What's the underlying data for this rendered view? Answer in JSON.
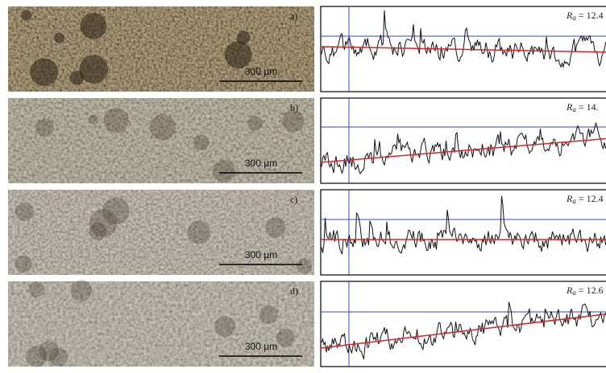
{
  "panels": [
    {
      "label": "a)",
      "scale": "300 µm",
      "ra_symbol": "R",
      "ra_sub": "a",
      "ra_value": "= 12.4"
    },
    {
      "label": "b)",
      "scale": "300 µm",
      "ra_symbol": "R",
      "ra_sub": "a",
      "ra_value": "= 14."
    },
    {
      "label": "c)",
      "scale": "300 µm",
      "ra_symbol": "R",
      "ra_sub": "a",
      "ra_value": "= 12.4"
    },
    {
      "label": "d)",
      "scale": "300 µm",
      "ra_symbol": "R",
      "ra_sub": "a",
      "ra_value": "= 12.6"
    }
  ]
}
